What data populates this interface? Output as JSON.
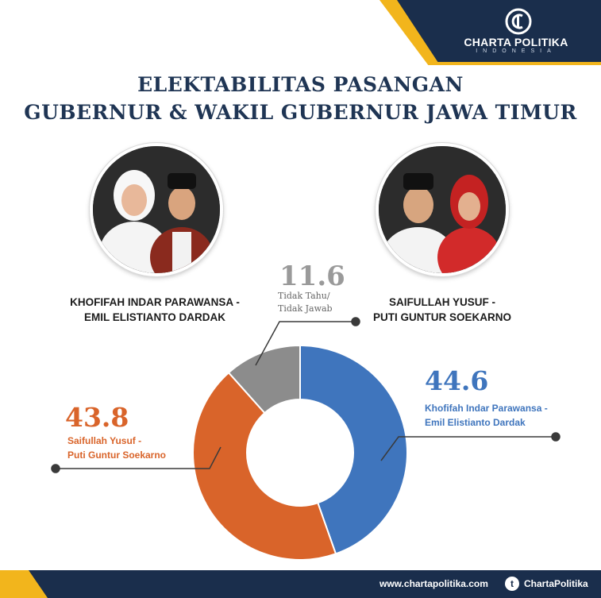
{
  "brand": {
    "name": "CHARTA POLITIKA",
    "sub": "INDONESIA",
    "colors": {
      "navy": "#1a2e4c",
      "yellow": "#f2b51c"
    }
  },
  "title": {
    "line1": "ELEKTABILITAS PASANGAN",
    "line2": "GUBERNUR & WAKIL GUBERNUR JAWA TIMUR"
  },
  "candidates": [
    {
      "line1": "KHOFIFAH INDAR PARAWANSA -",
      "line2": "EMIL ELISTIANTO DARDAK"
    },
    {
      "line1": "SAIFULLAH YUSUF -",
      "line2": "PUTI GUNTUR SOEKARNO"
    }
  ],
  "chart_data": {
    "type": "pie",
    "donut": true,
    "slices": [
      {
        "label_line1": "Khofifah Indar Parawansa -",
        "label_line2": "Emil Elistianto Dardak",
        "value": 44.6,
        "value_text": "44.6",
        "color": "#3f75bd"
      },
      {
        "label_line1": "Saifullah Yusuf -",
        "label_line2": "Puti Guntur Soekarno",
        "value": 43.8,
        "value_text": "43.8",
        "color": "#d9642a"
      },
      {
        "label_line1": "Tidak Tahu/",
        "label_line2": "Tidak Jawab",
        "value": 11.6,
        "value_text": "11.6",
        "color": "#8c8c8c"
      }
    ]
  },
  "footer": {
    "url": "www.chartapolitika.com",
    "social_icon": "twitter-icon",
    "handle": "ChartaPolitika"
  }
}
